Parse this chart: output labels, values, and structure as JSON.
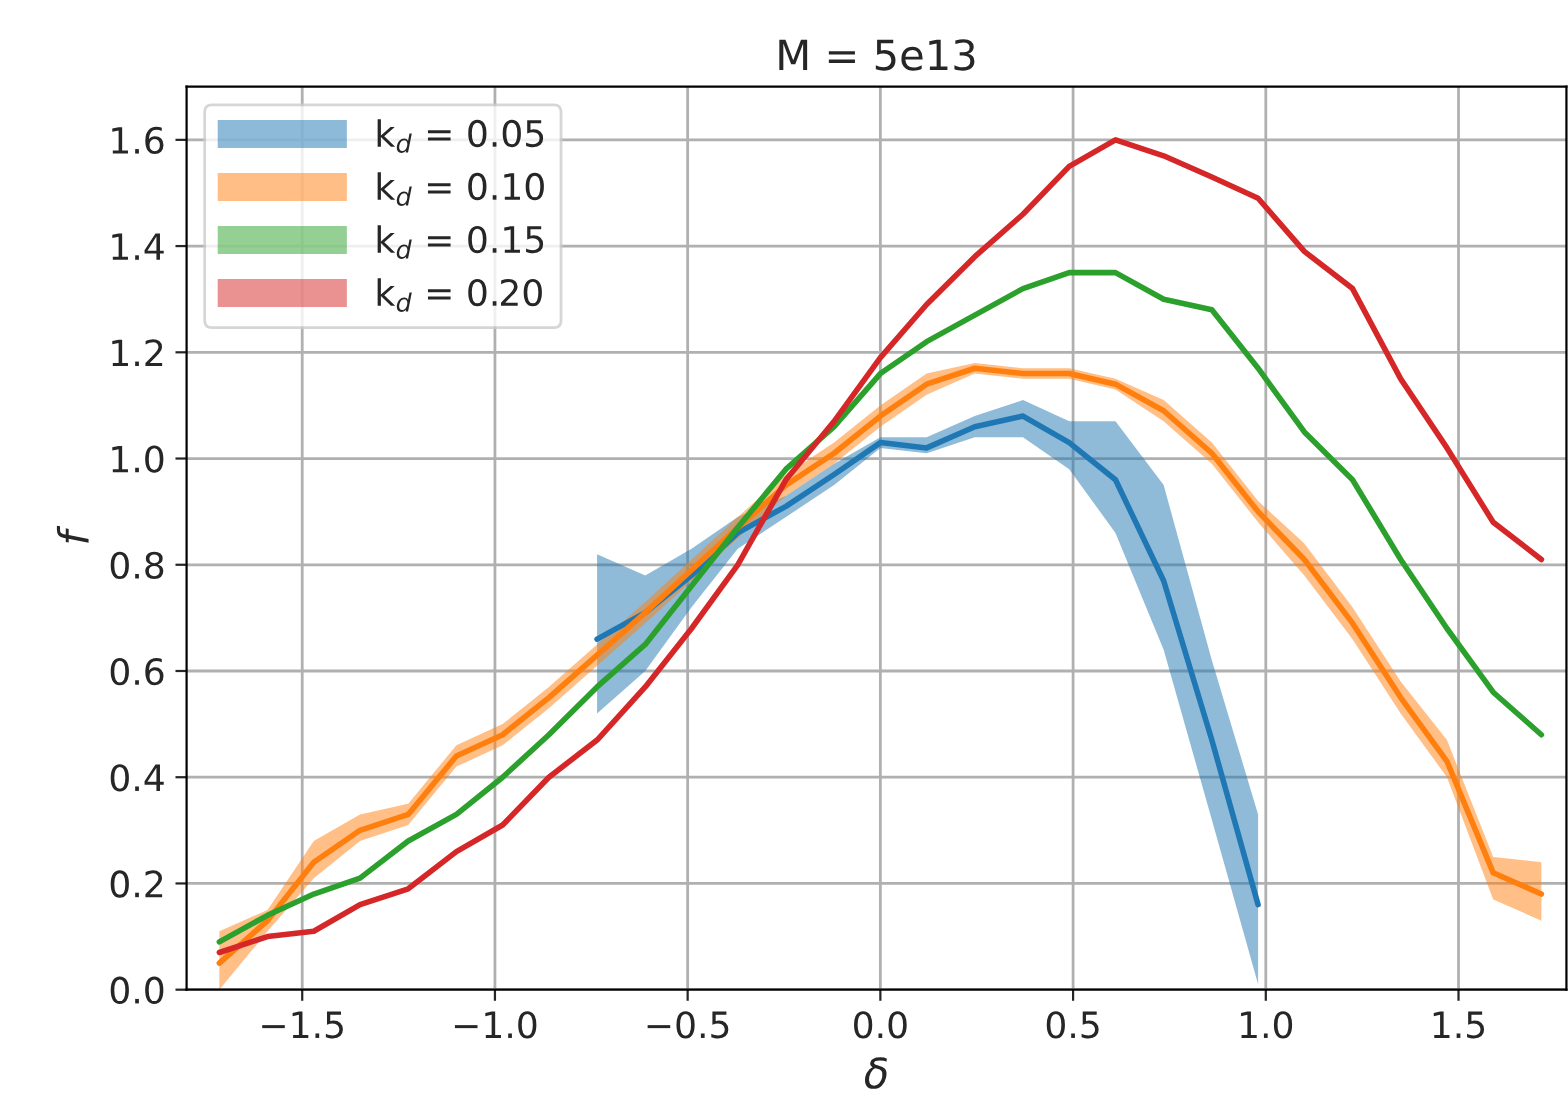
{
  "chart_data": {
    "type": "line",
    "title": "M = 5e13",
    "xlabel": "δ",
    "ylabel": "f",
    "xlim": [
      -1.8,
      1.78
    ],
    "xticks": [
      {
        "value": -1.5,
        "label": "−1.5"
      },
      {
        "value": -1.0,
        "label": "−1.0"
      },
      {
        "value": -0.5,
        "label": "−0.5"
      },
      {
        "value": 0.0,
        "label": "0.0"
      },
      {
        "value": 0.5,
        "label": "0.5"
      },
      {
        "value": 1.0,
        "label": "1.0"
      },
      {
        "value": 1.5,
        "label": "1.5"
      }
    ],
    "ylim": [
      0,
      1.7
    ],
    "yticks": [
      {
        "value": 0,
        "label": "0.0"
      },
      {
        "value": 0.2,
        "label": "0.2"
      },
      {
        "value": 0.4,
        "label": "0.4"
      },
      {
        "value": 0.6,
        "label": "0.6"
      },
      {
        "value": 0.8,
        "label": "0.8"
      },
      {
        "value": 1.0,
        "label": "1.0"
      },
      {
        "value": 1.2,
        "label": "1.2"
      },
      {
        "value": 1.4,
        "label": "1.4"
      },
      {
        "value": 1.6,
        "label": "1.6"
      }
    ],
    "grid": true,
    "legend": "top left",
    "line_style": "solid",
    "marker": "none",
    "series": [
      {
        "name": "k$_{d}$ = 0.05",
        "color": "#1f77b4",
        "x": [
          -0.735,
          -0.61,
          -0.49,
          -0.37,
          -0.245,
          -0.12,
          0,
          0.12,
          0.245,
          0.37,
          0.49,
          0.61,
          0.735,
          0.86,
          0.98
        ],
        "values": [
          0.66,
          0.71,
          0.78,
          0.86,
          0.91,
          0.97,
          1.03,
          1.02,
          1.06,
          1.08,
          1.03,
          0.96,
          0.77,
          0.47,
          0.16
        ],
        "lower": [
          0.52,
          0.6,
          0.72,
          0.83,
          0.89,
          0.95,
          1.02,
          1.01,
          1.04,
          1.04,
          0.98,
          0.86,
          0.64,
          0.32,
          0.01
        ],
        "upper": [
          0.82,
          0.78,
          0.83,
          0.89,
          0.93,
          0.99,
          1.04,
          1.04,
          1.08,
          1.11,
          1.07,
          1.07,
          0.95,
          0.62,
          0.33
        ]
      },
      {
        "name": "k$_{d}$ = 0.10",
        "color": "#ff7f0e",
        "x": [
          -1.715,
          -1.59,
          -1.47,
          -1.35,
          -1.225,
          -1.1,
          -0.98,
          -0.86,
          -0.735,
          -0.61,
          -0.49,
          -0.37,
          -0.245,
          -0.12,
          0,
          0.12,
          0.245,
          0.37,
          0.49,
          0.61,
          0.735,
          0.86,
          0.98,
          1.1,
          1.225,
          1.35,
          1.47,
          1.59,
          1.715
        ],
        "values": [
          0.05,
          0.13,
          0.24,
          0.3,
          0.33,
          0.44,
          0.48,
          0.55,
          0.63,
          0.71,
          0.79,
          0.87,
          0.95,
          1.01,
          1.08,
          1.14,
          1.17,
          1.16,
          1.16,
          1.14,
          1.09,
          1.01,
          0.9,
          0.81,
          0.69,
          0.55,
          0.43,
          0.22,
          0.18
        ],
        "lower": [
          0.0,
          0.11,
          0.21,
          0.28,
          0.31,
          0.42,
          0.46,
          0.53,
          0.61,
          0.69,
          0.77,
          0.85,
          0.93,
          0.99,
          1.06,
          1.12,
          1.16,
          1.15,
          1.15,
          1.13,
          1.07,
          0.99,
          0.88,
          0.78,
          0.66,
          0.52,
          0.4,
          0.17,
          0.13
        ],
        "upper": [
          0.11,
          0.15,
          0.28,
          0.33,
          0.35,
          0.46,
          0.5,
          0.57,
          0.65,
          0.73,
          0.81,
          0.89,
          0.97,
          1.03,
          1.1,
          1.16,
          1.18,
          1.17,
          1.17,
          1.15,
          1.11,
          1.03,
          0.92,
          0.84,
          0.72,
          0.58,
          0.47,
          0.25,
          0.24
        ]
      },
      {
        "name": "k$_{d}$ = 0.15",
        "color": "#2ca02c",
        "x": [
          -1.715,
          -1.59,
          -1.47,
          -1.35,
          -1.225,
          -1.1,
          -0.98,
          -0.86,
          -0.735,
          -0.61,
          -0.49,
          -0.37,
          -0.245,
          -0.12,
          0,
          0.12,
          0.245,
          0.37,
          0.49,
          0.61,
          0.735,
          0.86,
          0.98,
          1.1,
          1.225,
          1.35,
          1.47,
          1.59,
          1.715
        ],
        "values": [
          0.09,
          0.14,
          0.18,
          0.21,
          0.28,
          0.33,
          0.4,
          0.48,
          0.57,
          0.65,
          0.76,
          0.87,
          0.98,
          1.06,
          1.16,
          1.22,
          1.27,
          1.32,
          1.35,
          1.35,
          1.3,
          1.28,
          1.17,
          1.05,
          0.96,
          0.81,
          0.68,
          0.56,
          0.48
        ]
      },
      {
        "name": "k$_{d}$ = 0.20",
        "color": "#d62728",
        "x": [
          -1.715,
          -1.59,
          -1.47,
          -1.35,
          -1.225,
          -1.1,
          -0.98,
          -0.86,
          -0.735,
          -0.61,
          -0.49,
          -0.37,
          -0.245,
          -0.12,
          0,
          0.12,
          0.245,
          0.37,
          0.49,
          0.61,
          0.735,
          0.86,
          0.98,
          1.1,
          1.225,
          1.35,
          1.47,
          1.59,
          1.715
        ],
        "values": [
          0.07,
          0.1,
          0.11,
          0.16,
          0.19,
          0.26,
          0.31,
          0.4,
          0.47,
          0.57,
          0.68,
          0.8,
          0.96,
          1.07,
          1.19,
          1.29,
          1.38,
          1.46,
          1.55,
          1.6,
          1.57,
          1.53,
          1.49,
          1.39,
          1.32,
          1.15,
          1.02,
          0.88,
          0.81
        ]
      }
    ]
  }
}
